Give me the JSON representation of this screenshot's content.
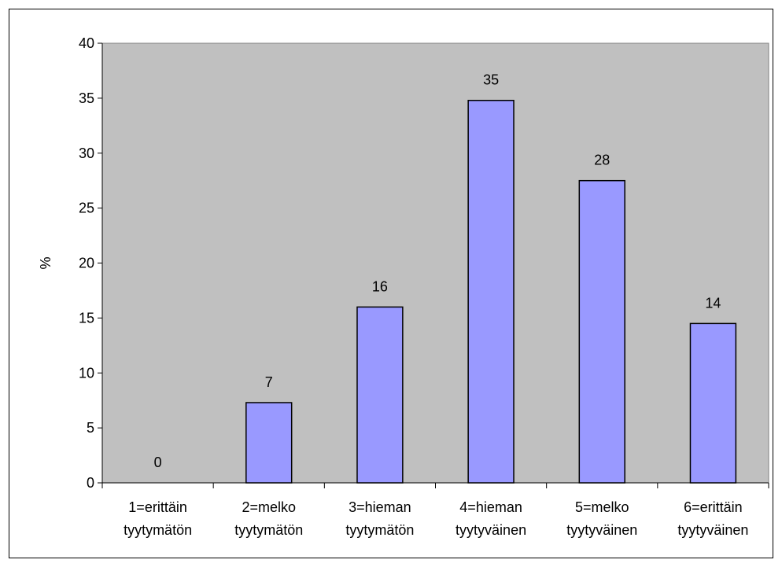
{
  "chart_data": {
    "type": "bar",
    "ylabel": "%",
    "ylim": [
      0,
      40
    ],
    "yticks": [
      0,
      5,
      10,
      15,
      20,
      25,
      30,
      35,
      40
    ],
    "categories": [
      [
        "1=erittäin",
        "tyytymätön"
      ],
      [
        "2=melko",
        "tyytymätön"
      ],
      [
        "3=hieman",
        "tyytymätön"
      ],
      [
        "4=hieman",
        "tyytyväinen"
      ],
      [
        "5=melko",
        "tyytyväinen"
      ],
      [
        "6=erittäin",
        "tyytyväinen"
      ]
    ],
    "values": [
      0,
      7.3,
      16,
      34.8,
      27.5,
      14.5
    ],
    "data_labels": [
      "0",
      "7",
      "16",
      "35",
      "28",
      "14"
    ],
    "colors": {
      "plot_background": "#c0c0c0",
      "bar_fill": "#9999ff",
      "bar_stroke": "#000000"
    },
    "grid": false
  }
}
